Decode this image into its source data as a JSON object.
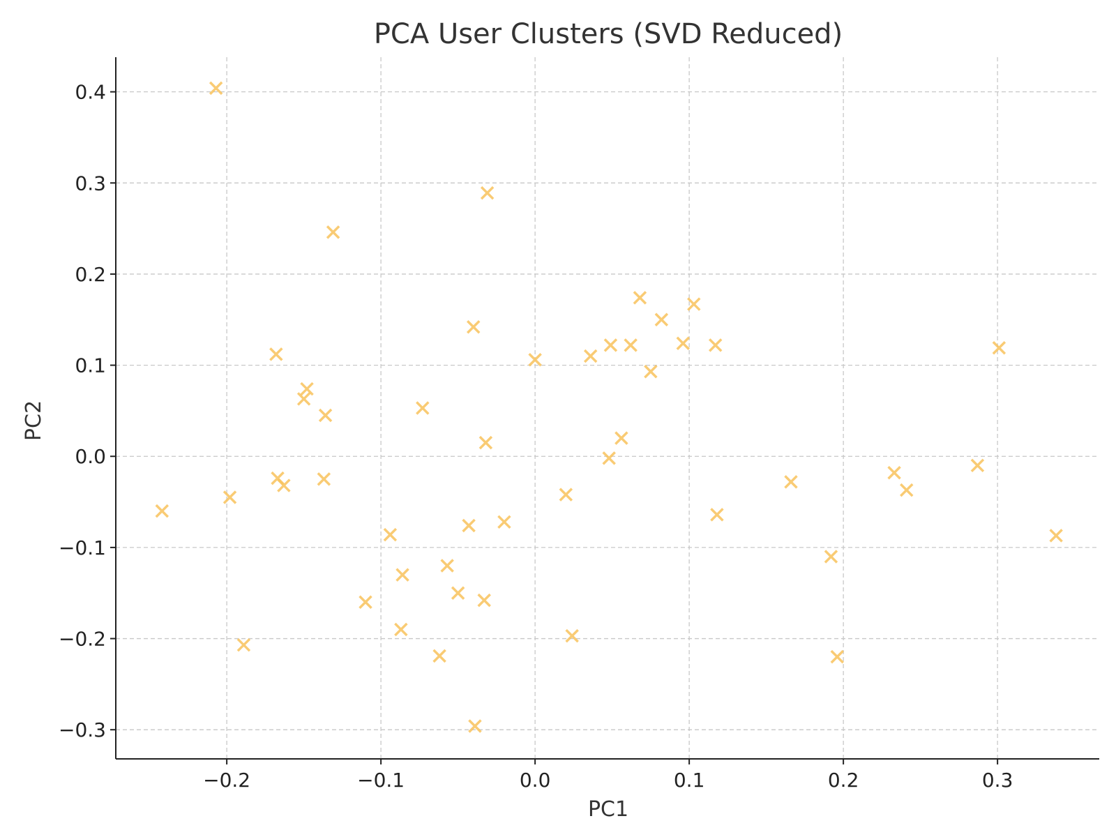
{
  "chart_data": {
    "type": "scatter",
    "title": "PCA User Clusters (SVD Reduced)",
    "xlabel": "PC1",
    "ylabel": "PC2",
    "xlim": [
      -0.272,
      0.366
    ],
    "ylim": [
      -0.332,
      0.438
    ],
    "xticks": [
      -0.2,
      -0.1,
      0.0,
      0.1,
      0.2,
      0.3
    ],
    "xtick_labels": [
      "−0.2",
      "−0.1",
      "0.0",
      "0.1",
      "0.2",
      "0.3"
    ],
    "yticks": [
      -0.3,
      -0.2,
      -0.1,
      0.0,
      0.1,
      0.2,
      0.3,
      0.4
    ],
    "ytick_labels": [
      "−0.3",
      "−0.2",
      "−0.1",
      "0.0",
      "0.1",
      "0.2",
      "0.3",
      "0.4"
    ],
    "grid": true,
    "marker": "x",
    "color": "#f9c35c",
    "opacity": 0.85,
    "series": [
      {
        "points": [
          [
            -0.207,
            0.404
          ],
          [
            -0.031,
            0.289
          ],
          [
            -0.131,
            0.246
          ],
          [
            0.068,
            0.174
          ],
          [
            0.103,
            0.167
          ],
          [
            0.082,
            0.15
          ],
          [
            -0.04,
            0.142
          ],
          [
            0.096,
            0.124
          ],
          [
            0.049,
            0.122
          ],
          [
            0.062,
            0.122
          ],
          [
            0.117,
            0.122
          ],
          [
            0.301,
            0.119
          ],
          [
            -0.168,
            0.112
          ],
          [
            0.036,
            0.11
          ],
          [
            0.0,
            0.106
          ],
          [
            0.075,
            0.093
          ],
          [
            -0.148,
            0.074
          ],
          [
            -0.15,
            0.063
          ],
          [
            -0.073,
            0.053
          ],
          [
            -0.136,
            0.045
          ],
          [
            0.056,
            0.02
          ],
          [
            -0.032,
            0.015
          ],
          [
            0.048,
            -0.002
          ],
          [
            0.233,
            -0.018
          ],
          [
            0.287,
            -0.01
          ],
          [
            -0.167,
            -0.024
          ],
          [
            -0.137,
            -0.025
          ],
          [
            0.166,
            -0.028
          ],
          [
            -0.163,
            -0.032
          ],
          [
            0.241,
            -0.037
          ],
          [
            0.02,
            -0.042
          ],
          [
            -0.198,
            -0.045
          ],
          [
            -0.242,
            -0.06
          ],
          [
            0.118,
            -0.064
          ],
          [
            -0.02,
            -0.072
          ],
          [
            -0.043,
            -0.076
          ],
          [
            -0.094,
            -0.086
          ],
          [
            0.338,
            -0.087
          ],
          [
            0.192,
            -0.11
          ],
          [
            -0.057,
            -0.12
          ],
          [
            -0.086,
            -0.13
          ],
          [
            -0.05,
            -0.15
          ],
          [
            -0.033,
            -0.158
          ],
          [
            -0.11,
            -0.16
          ],
          [
            -0.087,
            -0.19
          ],
          [
            0.024,
            -0.197
          ],
          [
            -0.189,
            -0.207
          ],
          [
            -0.062,
            -0.219
          ],
          [
            0.196,
            -0.22
          ],
          [
            -0.039,
            -0.296
          ]
        ]
      }
    ]
  }
}
